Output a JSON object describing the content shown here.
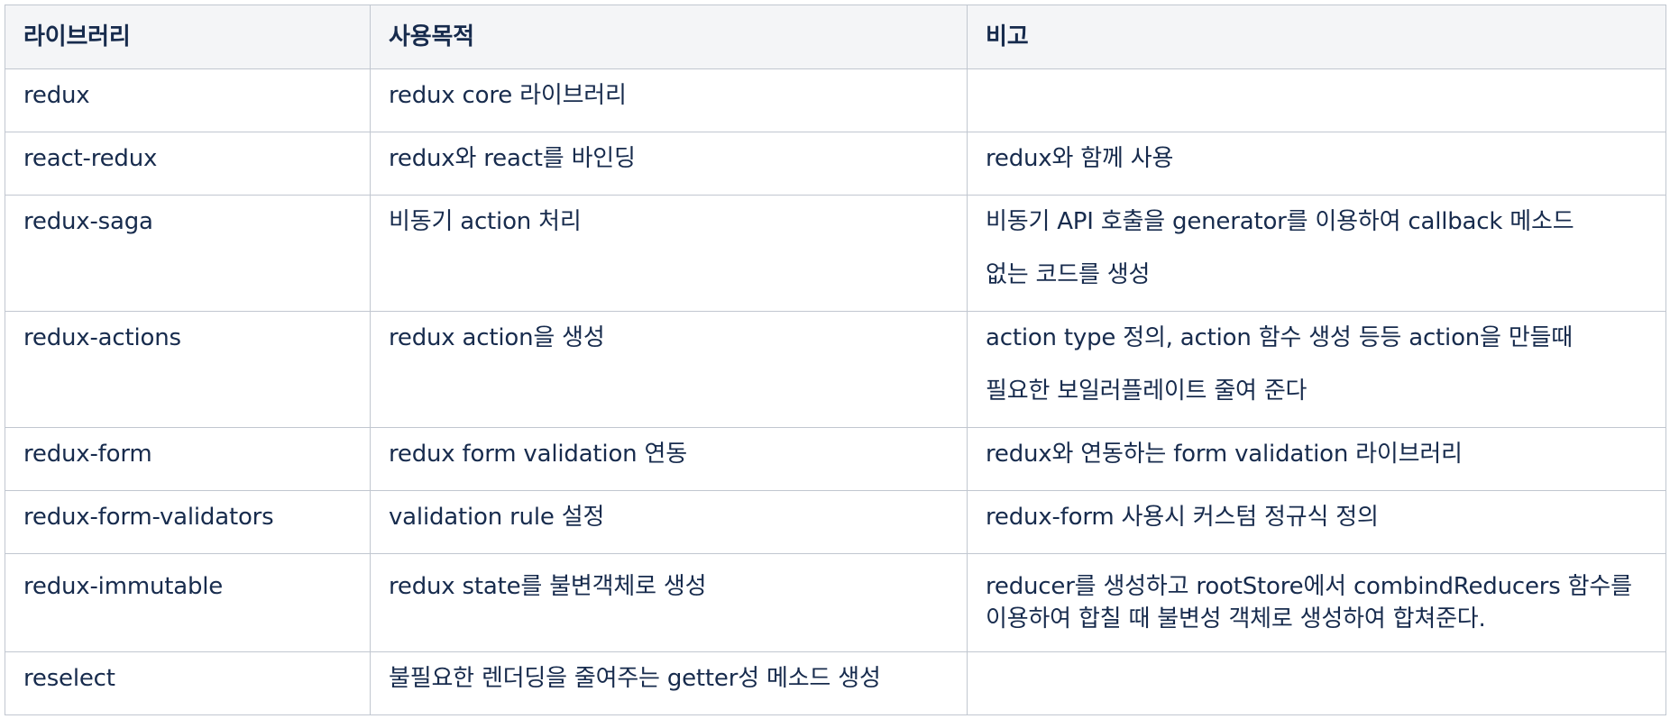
{
  "table": {
    "headers": [
      "라이브러리",
      "사용목적",
      "비고"
    ],
    "rows": [
      {
        "library": "redux",
        "purpose": "redux core 라이브러리",
        "notes": []
      },
      {
        "library": "react-redux",
        "purpose": "redux와 react를 바인딩",
        "notes": [
          "redux와 함께 사용"
        ]
      },
      {
        "library": "redux-saga",
        "purpose": "비동기 action 처리",
        "notes": [
          "비동기 API 호출을 generator를 이용하여 callback 메소드",
          "없는 코드를 생성"
        ]
      },
      {
        "library": "redux-actions",
        "purpose": "redux action을 생성",
        "notes": [
          "action type 정의, action 함수 생성 등등 action을 만들때",
          "필요한 보일러플레이트 줄여 준다"
        ]
      },
      {
        "library": "redux-form",
        "purpose": "redux form validation 연동",
        "notes": [
          "redux와 연동하는 form validation 라이브러리"
        ]
      },
      {
        "library": "redux-form-validators",
        "purpose": "validation rule 설정",
        "notes": [
          "redux-form 사용시 커스텀 정규식 정의"
        ]
      },
      {
        "library": "redux-immutable",
        "purpose": "redux state를 불변객체로 생성",
        "notes": [
          "reducer를 생성하고 rootStore에서 combindReducers 함수를",
          "이용하여 합칠 때 불변성 객체로 생성하여 합쳐준다."
        ]
      },
      {
        "library": "reselect",
        "purpose": "불필요한 렌더딩을 줄여주는 getter성 메소드 생성",
        "notes": []
      }
    ]
  }
}
